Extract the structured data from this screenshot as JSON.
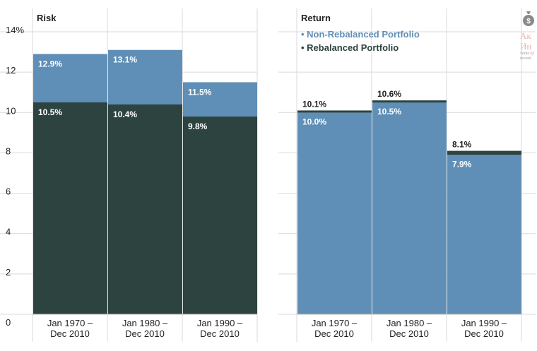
{
  "chart_data": [
    {
      "type": "bar",
      "title": "Risk",
      "categories": [
        "Jan 1970 –\nDec 2010",
        "Jan 1980 –\nDec 2010",
        "Jan 1990 –\nDec 2010"
      ],
      "series": [
        {
          "name": "Non-Rebalanced Portfolio",
          "values": [
            12.9,
            13.1,
            11.5
          ],
          "labels": [
            "12.9%",
            "13.1%",
            "11.5%"
          ],
          "color": "#5f8fb6"
        },
        {
          "name": "Rebalanced Portfolio",
          "values": [
            10.5,
            10.4,
            9.8
          ],
          "labels": [
            "10.5%",
            "10.4%",
            "9.8%"
          ],
          "color": "#2d4340"
        }
      ],
      "ylim": [
        0,
        14
      ],
      "yticks": [
        "0",
        "2",
        "4",
        "6",
        "8",
        "10",
        "12",
        "14%"
      ],
      "grid": true
    },
    {
      "type": "bar",
      "title": "Return",
      "categories": [
        "Jan 1970 –\nDec 2010",
        "Jan 1980 –\nDec 2010",
        "Jan 1990 –\nDec 2010"
      ],
      "series": [
        {
          "name": "Non-Rebalanced Portfolio",
          "values": [
            10.0,
            10.5,
            7.9
          ],
          "labels": [
            "10.0%",
            "10.5%",
            "7.9%"
          ],
          "color": "#5f8fb6"
        },
        {
          "name": "Rebalanced Portfolio",
          "values": [
            10.1,
            10.6,
            8.1
          ],
          "labels": [
            "10.1%",
            "10.6%",
            "8.1%"
          ],
          "color": "#2d4340"
        }
      ],
      "ylim": [
        0,
        14
      ],
      "legend": {
        "position": "top-left",
        "items": [
          "Non-Rebalanced Portfolio",
          "Rebalanced Portfolio"
        ],
        "marker": "•"
      },
      "grid": true
    }
  ],
  "colors": {
    "non_rebalanced": "#5f8fb6",
    "rebalanced": "#2d4340",
    "grid": "#d9d9d9",
    "text": "#222222"
  },
  "watermark": {
    "line1": "Ак",
    "line2": "Ин",
    "sub1": "Some of",
    "sub2": "investi",
    "icon": "money-bag-icon"
  }
}
